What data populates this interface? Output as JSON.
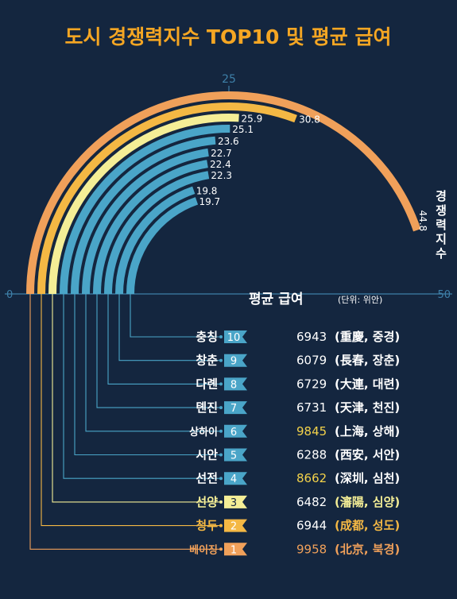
{
  "title": "도시 경쟁력지수 TOP10 및 평균 급여",
  "chart_data": {
    "type": "bar",
    "subtype": "radial-bar",
    "axis": {
      "min": 0,
      "max": 50,
      "ticks": [
        0,
        25,
        50
      ]
    },
    "index_label": "경쟁력지수",
    "salary_label": "평균 급여",
    "salary_unit": "(단위: 위안)",
    "categories": [
      "베이징",
      "청두",
      "선양",
      "선전",
      "시안",
      "상하이",
      "톈진",
      "다롄",
      "창춘",
      "충칭"
    ],
    "ranks": [
      1,
      2,
      3,
      4,
      5,
      6,
      7,
      8,
      9,
      10
    ],
    "series": [
      {
        "name": "경쟁력지수",
        "values": [
          44.8,
          30.8,
          25.9,
          25.1,
          23.6,
          22.7,
          22.4,
          22.3,
          19.8,
          19.7
        ]
      },
      {
        "name": "평균 급여",
        "values": [
          9958,
          6944,
          6482,
          8662,
          6288,
          9845,
          6731,
          6729,
          6079,
          6943
        ]
      }
    ],
    "city_notes": [
      "(北京, 북경)",
      "(成都, 성도)",
      "(瀋陽, 심양)",
      "(深圳, 심천)",
      "(西安, 서안)",
      "(上海, 상해)",
      "(天津, 천진)",
      "(大連, 대련)",
      "(長春, 장춘)",
      "(重慶, 중경)"
    ]
  },
  "colors": {
    "background": "#14263f",
    "title": "#f5a623",
    "rank1": "#f0a05a",
    "rank2": "#f4b844",
    "rank3": "#f4ee96",
    "blue": "#4aa5c8",
    "axis": "#3e7fa8",
    "white": "#ffffff",
    "salary_highlight": "#f3d24a"
  }
}
